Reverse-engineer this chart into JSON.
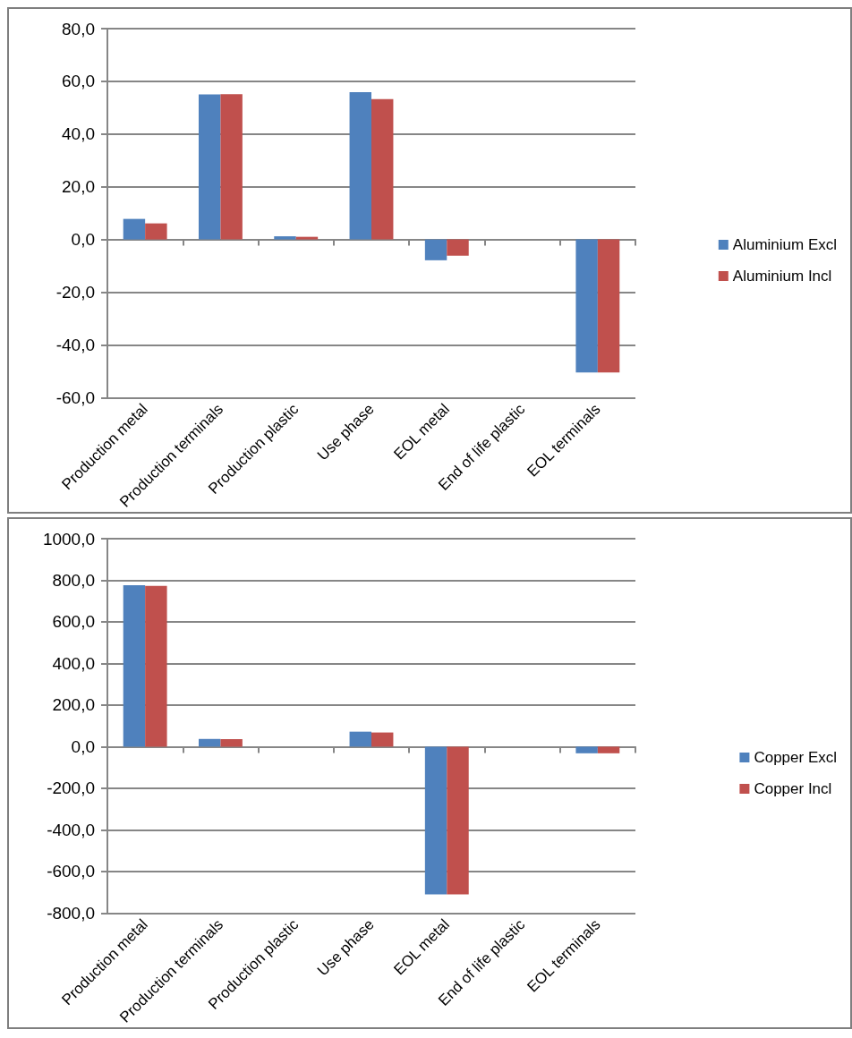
{
  "chart_data": [
    {
      "type": "bar",
      "categories": [
        "Production metal",
        "Production terminals",
        "Production plastic",
        "Use phase",
        "EOL metal",
        "End of life plastic",
        "EOL terminals"
      ],
      "series": [
        {
          "name": "Aluminium Excl",
          "color": "#4f81bd",
          "values": [
            7.8,
            55.0,
            1.2,
            55.9,
            -7.9,
            0,
            -50.5
          ]
        },
        {
          "name": "Aluminium Incl",
          "color": "#c0504d",
          "values": [
            6.1,
            55.1,
            1.0,
            53.3,
            -6.2,
            0,
            -50.5
          ]
        }
      ],
      "ylim": [
        -60,
        80
      ],
      "yticks": [
        {
          "value": -60,
          "label": "-60,0"
        },
        {
          "value": -40,
          "label": "-40,0"
        },
        {
          "value": -20,
          "label": "-20,0"
        },
        {
          "value": 0,
          "label": "0,0"
        },
        {
          "value": 20,
          "label": "20,0"
        },
        {
          "value": 40,
          "label": "40,0"
        },
        {
          "value": 60,
          "label": "60,0"
        },
        {
          "value": 80,
          "label": "80,0"
        }
      ],
      "grid": "y",
      "legend": "right"
    },
    {
      "type": "bar",
      "categories": [
        "Production metal",
        "Production terminals",
        "Production plastic",
        "Use phase",
        "EOL metal",
        "End of life plastic",
        "EOL terminals"
      ],
      "series": [
        {
          "name": "Copper Excl",
          "color": "#4f81bd",
          "values": [
            776,
            37,
            0,
            72,
            -711,
            0,
            -32
          ]
        },
        {
          "name": "Copper Incl",
          "color": "#c0504d",
          "values": [
            773,
            36,
            0,
            68,
            -711,
            0,
            -32
          ]
        }
      ],
      "ylim": [
        -800,
        1000
      ],
      "yticks": [
        {
          "value": -800,
          "label": "-800,0"
        },
        {
          "value": -600,
          "label": "-600,0"
        },
        {
          "value": -400,
          "label": "-400,0"
        },
        {
          "value": -200,
          "label": "-200,0"
        },
        {
          "value": 0,
          "label": "0,0"
        },
        {
          "value": 200,
          "label": "200,0"
        },
        {
          "value": 400,
          "label": "400,0"
        },
        {
          "value": 600,
          "label": "600,0"
        },
        {
          "value": 800,
          "label": "800,0"
        },
        {
          "value": 1000,
          "label": "1000,0"
        }
      ],
      "grid": "y",
      "legend": "right"
    }
  ]
}
